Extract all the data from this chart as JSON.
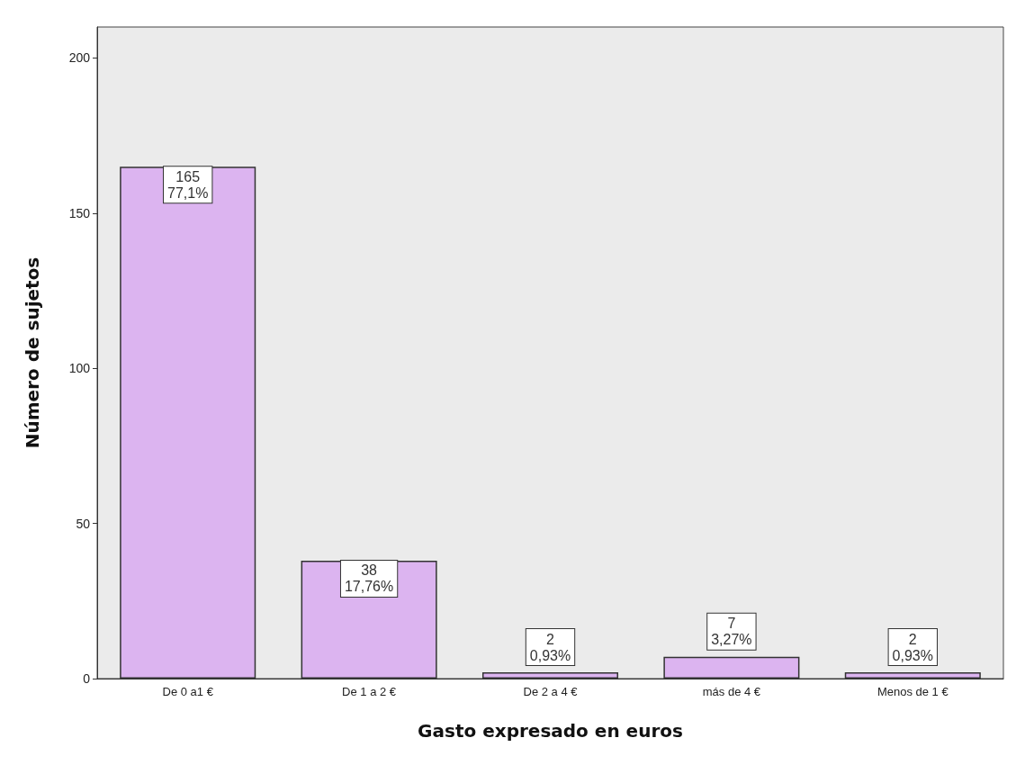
{
  "chart_data": {
    "type": "bar",
    "xlabel": "Gasto expresado en euros",
    "ylabel": "Número de sujetos",
    "categories": [
      "De 0 a1 €",
      "De 1 a 2 €",
      "De 2 a 4 €",
      "más de 4 €",
      "Menos de 1 €"
    ],
    "values": [
      165,
      38,
      2,
      7,
      2
    ],
    "value_labels": [
      "165\n77,1%",
      "38\n17,76%",
      "2\n0,93%",
      "7\n3,27%",
      "2\n0,93%"
    ],
    "color": "#dcb4f0",
    "ylim": [
      0,
      210
    ],
    "yticks": [
      0,
      50,
      100,
      150,
      200
    ],
    "grid": false
  }
}
